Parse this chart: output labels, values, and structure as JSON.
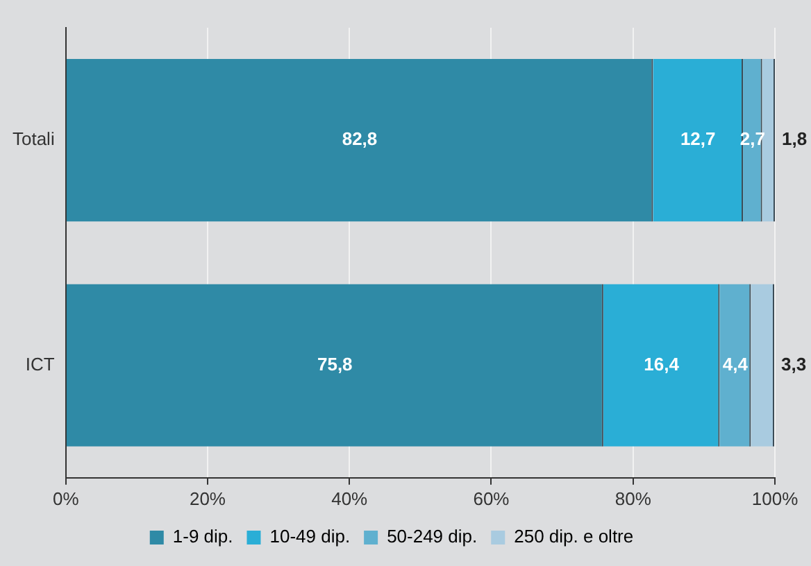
{
  "chart_data": {
    "type": "bar",
    "orientation": "horizontal",
    "stacked": true,
    "categories": [
      "Totali",
      "ICT"
    ],
    "series": [
      {
        "name": "1-9 dip.",
        "color": "#2f8aa6",
        "values": [
          82.8,
          75.8
        ],
        "value_labels": [
          "82,8",
          "75,8"
        ]
      },
      {
        "name": "10-49 dip.",
        "color": "#2aaed6",
        "values": [
          12.7,
          16.4
        ],
        "value_labels": [
          "12,7",
          "16,4"
        ]
      },
      {
        "name": "50-249 dip.",
        "color": "#5fb0cf",
        "values": [
          2.7,
          4.4
        ],
        "value_labels": [
          "2,7",
          "4,4"
        ]
      },
      {
        "name": "250 dip. e oltre",
        "color": "#a9cbe0",
        "values": [
          1.8,
          3.3
        ],
        "value_labels": [
          "1,8",
          "3,3"
        ]
      }
    ],
    "xlim": [
      0,
      100
    ],
    "xticks": [
      {
        "value": 0,
        "label": "0%"
      },
      {
        "value": 20,
        "label": "20%"
      },
      {
        "value": 40,
        "label": "40%"
      },
      {
        "value": 60,
        "label": "60%"
      },
      {
        "value": 80,
        "label": "80%"
      },
      {
        "value": 100,
        "label": "100%"
      }
    ],
    "grid": "x",
    "legend": "bottom"
  }
}
